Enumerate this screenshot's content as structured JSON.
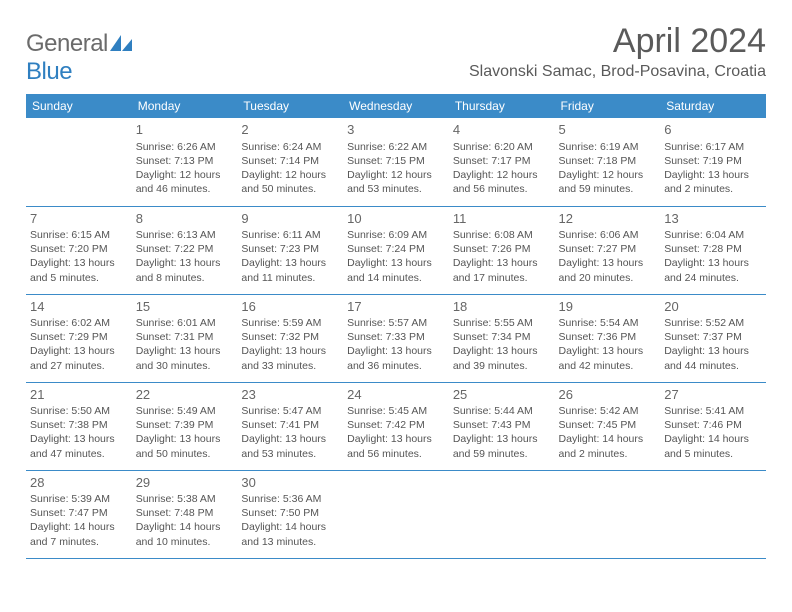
{
  "brand": {
    "general": "General",
    "blue": "Blue"
  },
  "header": {
    "month_title": "April 2024",
    "location": "Slavonski Samac, Brod-Posavina, Croatia"
  },
  "daynames": [
    "Sunday",
    "Monday",
    "Tuesday",
    "Wednesday",
    "Thursday",
    "Friday",
    "Saturday"
  ],
  "colors": {
    "header_bg": "#3b8bc8",
    "header_fg": "#ffffff",
    "border": "#3b8bc8"
  },
  "weeks": [
    [
      null,
      {
        "n": "1",
        "sr": "Sunrise: 6:26 AM",
        "ss": "Sunset: 7:13 PM",
        "d1": "Daylight: 12 hours",
        "d2": "and 46 minutes."
      },
      {
        "n": "2",
        "sr": "Sunrise: 6:24 AM",
        "ss": "Sunset: 7:14 PM",
        "d1": "Daylight: 12 hours",
        "d2": "and 50 minutes."
      },
      {
        "n": "3",
        "sr": "Sunrise: 6:22 AM",
        "ss": "Sunset: 7:15 PM",
        "d1": "Daylight: 12 hours",
        "d2": "and 53 minutes."
      },
      {
        "n": "4",
        "sr": "Sunrise: 6:20 AM",
        "ss": "Sunset: 7:17 PM",
        "d1": "Daylight: 12 hours",
        "d2": "and 56 minutes."
      },
      {
        "n": "5",
        "sr": "Sunrise: 6:19 AM",
        "ss": "Sunset: 7:18 PM",
        "d1": "Daylight: 12 hours",
        "d2": "and 59 minutes."
      },
      {
        "n": "6",
        "sr": "Sunrise: 6:17 AM",
        "ss": "Sunset: 7:19 PM",
        "d1": "Daylight: 13 hours",
        "d2": "and 2 minutes."
      }
    ],
    [
      {
        "n": "7",
        "sr": "Sunrise: 6:15 AM",
        "ss": "Sunset: 7:20 PM",
        "d1": "Daylight: 13 hours",
        "d2": "and 5 minutes."
      },
      {
        "n": "8",
        "sr": "Sunrise: 6:13 AM",
        "ss": "Sunset: 7:22 PM",
        "d1": "Daylight: 13 hours",
        "d2": "and 8 minutes."
      },
      {
        "n": "9",
        "sr": "Sunrise: 6:11 AM",
        "ss": "Sunset: 7:23 PM",
        "d1": "Daylight: 13 hours",
        "d2": "and 11 minutes."
      },
      {
        "n": "10",
        "sr": "Sunrise: 6:09 AM",
        "ss": "Sunset: 7:24 PM",
        "d1": "Daylight: 13 hours",
        "d2": "and 14 minutes."
      },
      {
        "n": "11",
        "sr": "Sunrise: 6:08 AM",
        "ss": "Sunset: 7:26 PM",
        "d1": "Daylight: 13 hours",
        "d2": "and 17 minutes."
      },
      {
        "n": "12",
        "sr": "Sunrise: 6:06 AM",
        "ss": "Sunset: 7:27 PM",
        "d1": "Daylight: 13 hours",
        "d2": "and 20 minutes."
      },
      {
        "n": "13",
        "sr": "Sunrise: 6:04 AM",
        "ss": "Sunset: 7:28 PM",
        "d1": "Daylight: 13 hours",
        "d2": "and 24 minutes."
      }
    ],
    [
      {
        "n": "14",
        "sr": "Sunrise: 6:02 AM",
        "ss": "Sunset: 7:29 PM",
        "d1": "Daylight: 13 hours",
        "d2": "and 27 minutes."
      },
      {
        "n": "15",
        "sr": "Sunrise: 6:01 AM",
        "ss": "Sunset: 7:31 PM",
        "d1": "Daylight: 13 hours",
        "d2": "and 30 minutes."
      },
      {
        "n": "16",
        "sr": "Sunrise: 5:59 AM",
        "ss": "Sunset: 7:32 PM",
        "d1": "Daylight: 13 hours",
        "d2": "and 33 minutes."
      },
      {
        "n": "17",
        "sr": "Sunrise: 5:57 AM",
        "ss": "Sunset: 7:33 PM",
        "d1": "Daylight: 13 hours",
        "d2": "and 36 minutes."
      },
      {
        "n": "18",
        "sr": "Sunrise: 5:55 AM",
        "ss": "Sunset: 7:34 PM",
        "d1": "Daylight: 13 hours",
        "d2": "and 39 minutes."
      },
      {
        "n": "19",
        "sr": "Sunrise: 5:54 AM",
        "ss": "Sunset: 7:36 PM",
        "d1": "Daylight: 13 hours",
        "d2": "and 42 minutes."
      },
      {
        "n": "20",
        "sr": "Sunrise: 5:52 AM",
        "ss": "Sunset: 7:37 PM",
        "d1": "Daylight: 13 hours",
        "d2": "and 44 minutes."
      }
    ],
    [
      {
        "n": "21",
        "sr": "Sunrise: 5:50 AM",
        "ss": "Sunset: 7:38 PM",
        "d1": "Daylight: 13 hours",
        "d2": "and 47 minutes."
      },
      {
        "n": "22",
        "sr": "Sunrise: 5:49 AM",
        "ss": "Sunset: 7:39 PM",
        "d1": "Daylight: 13 hours",
        "d2": "and 50 minutes."
      },
      {
        "n": "23",
        "sr": "Sunrise: 5:47 AM",
        "ss": "Sunset: 7:41 PM",
        "d1": "Daylight: 13 hours",
        "d2": "and 53 minutes."
      },
      {
        "n": "24",
        "sr": "Sunrise: 5:45 AM",
        "ss": "Sunset: 7:42 PM",
        "d1": "Daylight: 13 hours",
        "d2": "and 56 minutes."
      },
      {
        "n": "25",
        "sr": "Sunrise: 5:44 AM",
        "ss": "Sunset: 7:43 PM",
        "d1": "Daylight: 13 hours",
        "d2": "and 59 minutes."
      },
      {
        "n": "26",
        "sr": "Sunrise: 5:42 AM",
        "ss": "Sunset: 7:45 PM",
        "d1": "Daylight: 14 hours",
        "d2": "and 2 minutes."
      },
      {
        "n": "27",
        "sr": "Sunrise: 5:41 AM",
        "ss": "Sunset: 7:46 PM",
        "d1": "Daylight: 14 hours",
        "d2": "and 5 minutes."
      }
    ],
    [
      {
        "n": "28",
        "sr": "Sunrise: 5:39 AM",
        "ss": "Sunset: 7:47 PM",
        "d1": "Daylight: 14 hours",
        "d2": "and 7 minutes."
      },
      {
        "n": "29",
        "sr": "Sunrise: 5:38 AM",
        "ss": "Sunset: 7:48 PM",
        "d1": "Daylight: 14 hours",
        "d2": "and 10 minutes."
      },
      {
        "n": "30",
        "sr": "Sunrise: 5:36 AM",
        "ss": "Sunset: 7:50 PM",
        "d1": "Daylight: 14 hours",
        "d2": "and 13 minutes."
      },
      null,
      null,
      null,
      null
    ]
  ]
}
